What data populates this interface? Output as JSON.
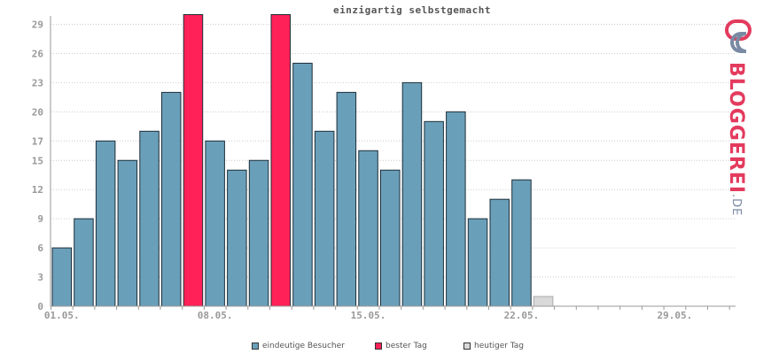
{
  "chart_data": {
    "type": "bar",
    "title": "einzigartig selbstgemacht",
    "x_tick_labels": [
      "01.05.",
      "08.05.",
      "15.05.",
      "22.05.",
      "29.05."
    ],
    "y_tick_labels": [
      "0",
      "3",
      "6",
      "9",
      "12",
      "15",
      "17",
      "20",
      "23",
      "26",
      "29"
    ],
    "ylim": [
      0,
      30
    ],
    "grid": true,
    "values": [
      6,
      9,
      17,
      15,
      18,
      22,
      30,
      17,
      14,
      15,
      30,
      25,
      18,
      22,
      16,
      14,
      23,
      19,
      20,
      9,
      11,
      13,
      1
    ],
    "value_types": [
      "visitors",
      "visitors",
      "visitors",
      "visitors",
      "visitors",
      "visitors",
      "best",
      "visitors",
      "visitors",
      "visitors",
      "best",
      "visitors",
      "visitors",
      "visitors",
      "visitors",
      "visitors",
      "visitors",
      "visitors",
      "visitors",
      "visitors",
      "visitors",
      "visitors",
      "today"
    ],
    "legend": [
      {
        "label": "eindeutige Besucher",
        "color": "#6a9fb9"
      },
      {
        "label": "bester Tag",
        "color": "#ff2157"
      },
      {
        "label": "heutiger Tag",
        "color": "#d9d9d9"
      }
    ],
    "legend_position": "bottom-center"
  },
  "colors": {
    "visitors": "#6a9fb9",
    "best": "#ff2157",
    "today": "#d9d9d9",
    "grid": "#cccccc",
    "axis": "#999999",
    "tick_text": "#999999"
  },
  "logo": {
    "text": "BLOGGEREI",
    "suffix": ".DE",
    "icon": "bloggerei-logo-icon"
  }
}
